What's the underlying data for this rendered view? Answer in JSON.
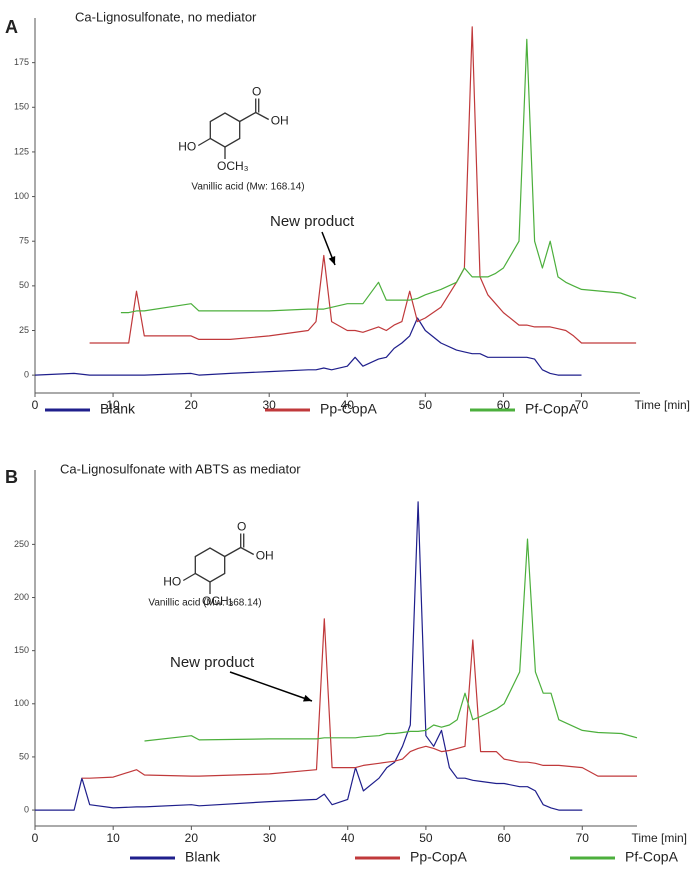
{
  "chart_data": [
    {
      "type": "line",
      "panel_label": "A",
      "title": "Ca-Lignosulfonate, no mediator",
      "annotation": "New product",
      "structure_labels": [
        "O",
        "OH",
        "HO",
        "OCH₃"
      ],
      "structure_caption": "Vanillic acid (Mw: 168.14)",
      "xlabel": "Time [min]",
      "legend": "bottom",
      "x": [
        0,
        5,
        7,
        11,
        12,
        13,
        14,
        20,
        21,
        25,
        30,
        35,
        36,
        37,
        38,
        40,
        41,
        42,
        44,
        45,
        46,
        47,
        48,
        49,
        50,
        52,
        54,
        55,
        56,
        57,
        58,
        59,
        60,
        62,
        63,
        64,
        65,
        66,
        67,
        68,
        69,
        70,
        75,
        77
      ],
      "series": [
        {
          "name": "Blank",
          "color": "#1f1f8c",
          "values": [
            0,
            1,
            0,
            0,
            0,
            0,
            0,
            1,
            0,
            1,
            2,
            3,
            3,
            4,
            3,
            5,
            10,
            5,
            9,
            10,
            15,
            18,
            22,
            32,
            25,
            18,
            14,
            13,
            12,
            12,
            10,
            10,
            10,
            10,
            10,
            9,
            3,
            1,
            0,
            0,
            0,
            0,
            null,
            null
          ]
        },
        {
          "name": "Pp-CopA",
          "color": "#c0393b",
          "values": [
            null,
            null,
            18,
            18,
            18,
            47,
            22,
            22,
            20,
            20,
            22,
            25,
            30,
            67,
            30,
            25,
            25,
            24,
            27,
            25,
            28,
            30,
            47,
            30,
            32,
            38,
            52,
            60,
            195,
            55,
            45,
            40,
            35,
            28,
            28,
            27,
            27,
            27,
            26,
            25,
            22,
            18,
            18,
            18
          ]
        },
        {
          "name": "Pf-CopA",
          "color": "#4caf3c",
          "values": [
            null,
            null,
            null,
            35,
            35,
            36,
            36,
            40,
            36,
            36,
            36,
            37,
            37,
            37,
            38,
            40,
            40,
            40,
            52,
            42,
            42,
            42,
            42,
            43,
            45,
            48,
            52,
            60,
            55,
            55,
            55,
            57,
            60,
            75,
            188,
            75,
            60,
            75,
            55,
            52,
            50,
            48,
            46,
            43
          ]
        }
      ],
      "xlim": [
        0,
        77.5
      ],
      "ylim": [
        -10,
        200
      ],
      "xticks": [
        0,
        10,
        20,
        30,
        40,
        50,
        60,
        70
      ],
      "yticks": [
        0,
        25,
        50,
        75,
        100,
        125,
        150,
        175
      ]
    },
    {
      "type": "line",
      "panel_label": "B",
      "title": "Ca-Lignosulfonate with ABTS  as  mediator",
      "annotation": "New product",
      "structure_labels": [
        "O",
        "OH",
        "HO",
        "OCH₃"
      ],
      "structure_caption": "Vanillic acid (Mw: 168.14)",
      "xlabel": "Time [min]",
      "legend": "bottom",
      "x": [
        0,
        5,
        6,
        7,
        10,
        13,
        14,
        20,
        21,
        30,
        36,
        37,
        38,
        40,
        41,
        42,
        44,
        45,
        46,
        47,
        48,
        49,
        50,
        51,
        52,
        53,
        54,
        55,
        56,
        57,
        59,
        60,
        62,
        63,
        64,
        65,
        66,
        67,
        70,
        72,
        75,
        77
      ],
      "series": [
        {
          "name": "Blank",
          "color": "#1f1f8c",
          "values": [
            0,
            0,
            30,
            5,
            2,
            3,
            3,
            5,
            4,
            8,
            10,
            15,
            5,
            10,
            40,
            18,
            30,
            40,
            45,
            60,
            80,
            290,
            70,
            60,
            75,
            40,
            30,
            30,
            28,
            27,
            25,
            25,
            22,
            22,
            18,
            5,
            2,
            0,
            0,
            null,
            null,
            null
          ]
        },
        {
          "name": "Pp-CopA",
          "color": "#c0393b",
          "values": [
            null,
            null,
            30,
            30,
            31,
            38,
            33,
            32,
            32,
            34,
            38,
            180,
            40,
            40,
            40,
            42,
            44,
            45,
            46,
            48,
            55,
            58,
            60,
            58,
            55,
            56,
            58,
            60,
            160,
            55,
            55,
            48,
            45,
            45,
            44,
            42,
            42,
            42,
            40,
            32,
            32,
            32
          ]
        },
        {
          "name": "Pf-CopA",
          "color": "#4caf3c",
          "values": [
            null,
            null,
            null,
            null,
            null,
            null,
            65,
            70,
            66,
            67,
            67,
            68,
            68,
            68,
            68,
            69,
            70,
            72,
            72,
            73,
            74,
            74,
            75,
            80,
            78,
            80,
            85,
            110,
            85,
            88,
            95,
            100,
            130,
            255,
            130,
            110,
            110,
            85,
            75,
            73,
            72,
            68
          ]
        }
      ],
      "xlim": [
        0,
        77
      ],
      "ylim": [
        -15,
        320
      ],
      "xticks": [
        0,
        10,
        20,
        30,
        40,
        50,
        60,
        70
      ],
      "yticks": [
        0,
        50,
        100,
        150,
        200,
        250
      ]
    }
  ]
}
